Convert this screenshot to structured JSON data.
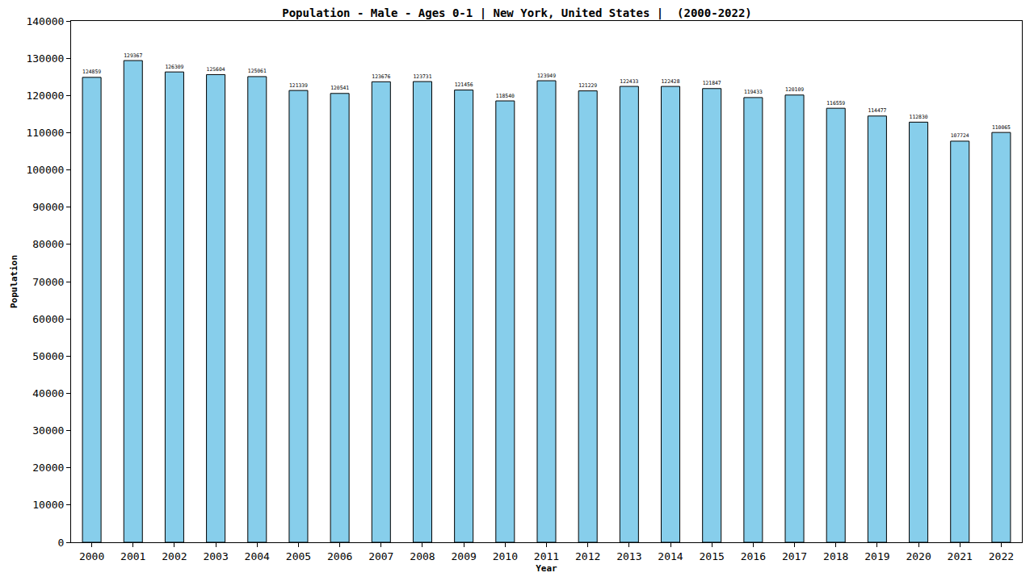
{
  "chart_data": {
    "type": "bar",
    "title": "Population - Male - Ages 0-1 | New York, United States |  (2000-2022)",
    "x_label": "Year",
    "y_label": "Population",
    "categories": [
      "2000",
      "2001",
      "2002",
      "2003",
      "2004",
      "2005",
      "2006",
      "2007",
      "2008",
      "2009",
      "2010",
      "2011",
      "2012",
      "2013",
      "2014",
      "2015",
      "2016",
      "2017",
      "2018",
      "2019",
      "2020",
      "2021",
      "2022"
    ],
    "values": [
      124859,
      129367,
      126309,
      125604,
      125061,
      121339,
      120541,
      123676,
      123731,
      121456,
      118540,
      123949,
      121229,
      122433,
      122428,
      121847,
      119433,
      120109,
      116559,
      114477,
      112830,
      107724,
      110065
    ],
    "color": "#87ceeb",
    "ylim": [
      0,
      140000
    ],
    "yticks": [
      0,
      10000,
      20000,
      30000,
      40000,
      50000,
      60000,
      70000,
      80000,
      90000,
      100000,
      110000,
      120000,
      130000,
      140000
    ],
    "grid": false,
    "data_labels": true
  }
}
